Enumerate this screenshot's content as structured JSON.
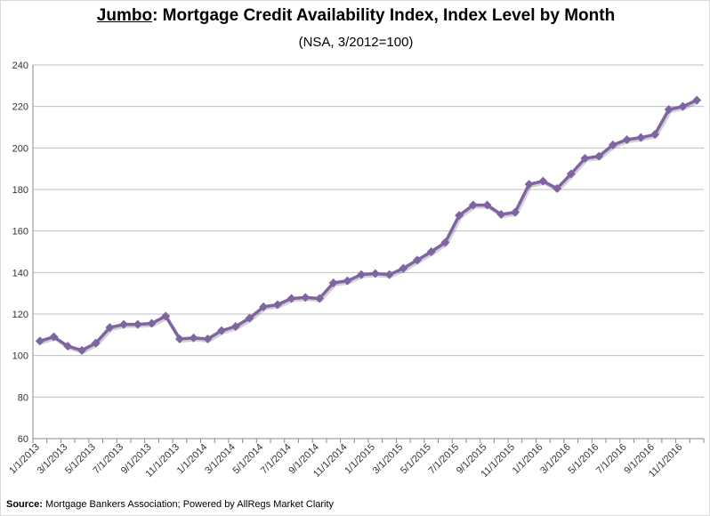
{
  "chart_data": {
    "type": "line",
    "title_prefix": "Jumbo",
    "title_rest": ": Mortgage Credit Availability Index, Index Level by Month",
    "subtitle": "(NSA, 3/2012=100)",
    "xlabel": "",
    "ylabel": "",
    "ylim": [
      60,
      240
    ],
    "yticks": [
      60,
      80,
      100,
      120,
      140,
      160,
      180,
      200,
      220,
      240
    ],
    "grid": true,
    "color": "#8064A2",
    "x": [
      "1/1/2013",
      "2/1/2013",
      "3/1/2013",
      "4/1/2013",
      "5/1/2013",
      "6/1/2013",
      "7/1/2013",
      "8/1/2013",
      "9/1/2013",
      "10/1/2013",
      "11/1/2013",
      "12/1/2013",
      "1/1/2014",
      "2/1/2014",
      "3/1/2014",
      "4/1/2014",
      "5/1/2014",
      "6/1/2014",
      "7/1/2014",
      "8/1/2014",
      "9/1/2014",
      "10/1/2014",
      "11/1/2014",
      "12/1/2014",
      "1/1/2015",
      "2/1/2015",
      "3/1/2015",
      "4/1/2015",
      "5/1/2015",
      "6/1/2015",
      "7/1/2015",
      "8/1/2015",
      "9/1/2015",
      "10/1/2015",
      "11/1/2015",
      "12/1/2015",
      "1/1/2016",
      "2/1/2016",
      "3/1/2016",
      "4/1/2016",
      "5/1/2016",
      "6/1/2016",
      "7/1/2016",
      "8/1/2016",
      "9/1/2016",
      "10/1/2016",
      "11/1/2016",
      "12/1/2016"
    ],
    "series": [
      {
        "name": "Jumbo",
        "values": [
          107,
          109,
          104.5,
          102.5,
          106,
          113.5,
          115,
          115,
          115.5,
          119,
          108,
          108.5,
          108,
          112,
          114,
          118,
          123.5,
          124.5,
          127.5,
          128,
          127.5,
          135,
          136,
          139,
          139.5,
          139,
          142,
          146,
          150,
          154.5,
          167.5,
          172.5,
          172.5,
          168,
          169,
          182.5,
          184,
          180.5,
          187.5,
          195,
          196,
          201.5,
          204,
          205,
          206.5,
          218.5,
          220,
          223
        ]
      }
    ]
  },
  "source_label": "Source:",
  "source_text": " Mortgage Bankers Association; Powered by AllRegs Market Clarity"
}
